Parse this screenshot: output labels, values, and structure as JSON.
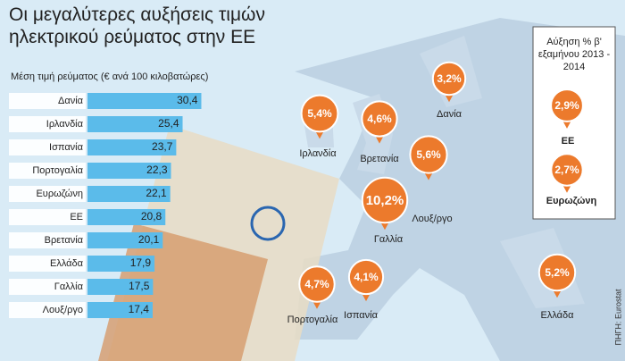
{
  "chart_data": [
    {
      "type": "bar",
      "title": "Οι μεγαλύτερες αυξήσεις τιμών ηλεκτρικού ρεύματος στην ΕΕ",
      "subtitle": "Μέση τιμή ρεύματος (€ ανά 100 κιλοβατώρες)",
      "categories": [
        "Δανία",
        "Ιρλανδία",
        "Ισπανία",
        "Πορτογαλία",
        "Ευρωζώνη",
        "ΕΕ",
        "Βρετανία",
        "Ελλάδα",
        "Γαλλία",
        "Λουξ/ργο"
      ],
      "values": [
        30.4,
        25.4,
        23.7,
        22.3,
        22.1,
        20.8,
        20.1,
        17.9,
        17.5,
        17.4
      ],
      "value_labels": [
        "30,4",
        "25,4",
        "23,7",
        "22,3",
        "22,1",
        "20,8",
        "20,1",
        "17,9",
        "17,5",
        "17,4"
      ],
      "color": "#5bbbea",
      "xlim": [
        0,
        31
      ]
    },
    {
      "type": "map",
      "title": "Αύξηση % β' εξαμήνου 2013 - 2014",
      "categories": [
        "Δανία",
        "Ιρλανδία",
        "Βρετανία",
        "Λουξ/ργο",
        "Γαλλία",
        "Πορτογαλία",
        "Ισπανία",
        "Ελλάδα",
        "ΕΕ",
        "Ευρωζώνη"
      ],
      "values": [
        3.2,
        5.4,
        4.6,
        5.6,
        10.2,
        4.7,
        4.1,
        5.2,
        2.9,
        2.7
      ],
      "value_labels": [
        "3,2%",
        "5,4%",
        "4,6%",
        "5,6%",
        "10,2%",
        "4,7%",
        "4,1%",
        "5,2%",
        "2,9%",
        "2,7%"
      ],
      "color": "#ec7a2c",
      "source": "ΠΗΓΗ: Eurostat"
    }
  ]
}
